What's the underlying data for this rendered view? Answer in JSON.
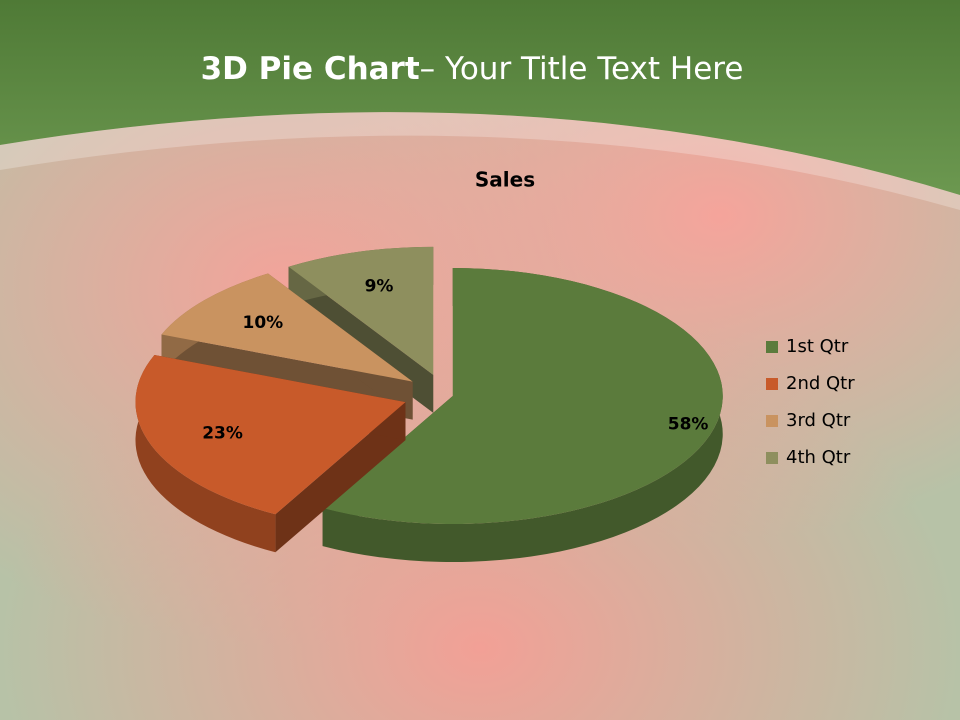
{
  "slide": {
    "title_bold": "3D Pie Chart",
    "title_rest": "– Your Title Text Here"
  },
  "chart_data": {
    "type": "pie3d",
    "title": "Sales",
    "categories": [
      "1st Qtr",
      "2nd Qtr",
      "3rd Qtr",
      "4th Qtr"
    ],
    "values": [
      58,
      23,
      10,
      9
    ],
    "value_labels": [
      "58%",
      "23%",
      "10%",
      "9%"
    ],
    "colors": [
      "#5b7b3c",
      "#c85a2a",
      "#c99360",
      "#8e8f5e"
    ],
    "legend": "right"
  }
}
